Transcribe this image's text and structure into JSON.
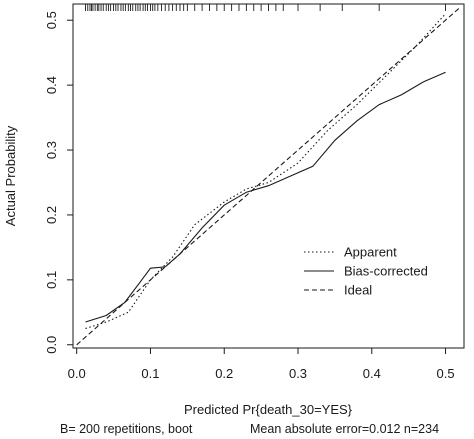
{
  "chart_data": {
    "type": "line",
    "xlabel": "Predicted Pr{death_30=YES}",
    "ylabel": "Actual Probability",
    "xlim": [
      -0.005,
      0.525
    ],
    "ylim": [
      -0.005,
      0.525
    ],
    "x_ticks": [
      0.0,
      0.1,
      0.2,
      0.3,
      0.4,
      0.5
    ],
    "x_tick_labels": [
      "0.0",
      "0.1",
      "0.2",
      "0.3",
      "0.4",
      "0.5"
    ],
    "y_ticks": [
      0.0,
      0.1,
      0.2,
      0.3,
      0.4,
      0.5
    ],
    "y_tick_labels": [
      "0.0",
      "0.1",
      "0.2",
      "0.3",
      "0.4",
      "0.5"
    ],
    "grid": false,
    "legend_position": "bottom-right",
    "footnote_left": "B= 200 repetitions, boot",
    "footnote_right": "Mean absolute error=0.012 n=234",
    "series": [
      {
        "name": "Apparent",
        "style": "dotted",
        "x": [
          0.012,
          0.04,
          0.07,
          0.1,
          0.13,
          0.16,
          0.2,
          0.23,
          0.26,
          0.3,
          0.34,
          0.38,
          0.42,
          0.46,
          0.5
        ],
        "y": [
          0.025,
          0.035,
          0.05,
          0.1,
          0.135,
          0.185,
          0.22,
          0.24,
          0.25,
          0.28,
          0.33,
          0.37,
          0.415,
          0.46,
          0.51
        ]
      },
      {
        "name": "Bias-corrected",
        "style": "solid",
        "x": [
          0.012,
          0.04,
          0.065,
          0.085,
          0.1,
          0.12,
          0.14,
          0.17,
          0.2,
          0.23,
          0.26,
          0.29,
          0.32,
          0.35,
          0.38,
          0.41,
          0.44,
          0.47,
          0.5
        ],
        "y": [
          0.035,
          0.045,
          0.065,
          0.095,
          0.118,
          0.12,
          0.14,
          0.18,
          0.215,
          0.235,
          0.245,
          0.26,
          0.275,
          0.315,
          0.345,
          0.37,
          0.385,
          0.405,
          0.42
        ]
      },
      {
        "name": "Ideal",
        "style": "dashed",
        "x": [
          0.0,
          0.52
        ],
        "y": [
          0.0,
          0.52
        ]
      }
    ],
    "rug_x": [
      0.012,
      0.015,
      0.018,
      0.02,
      0.022,
      0.025,
      0.028,
      0.03,
      0.033,
      0.036,
      0.04,
      0.043,
      0.046,
      0.05,
      0.053,
      0.056,
      0.06,
      0.063,
      0.066,
      0.07,
      0.073,
      0.076,
      0.08,
      0.083,
      0.086,
      0.09,
      0.093,
      0.096,
      0.1,
      0.103,
      0.106,
      0.11,
      0.115,
      0.12,
      0.125,
      0.13,
      0.135,
      0.14,
      0.145,
      0.15,
      0.16,
      0.17,
      0.18,
      0.19,
      0.2,
      0.21,
      0.22,
      0.23,
      0.24,
      0.25,
      0.26,
      0.27,
      0.28,
      0.3,
      0.33,
      0.36,
      0.41,
      0.5
    ]
  }
}
